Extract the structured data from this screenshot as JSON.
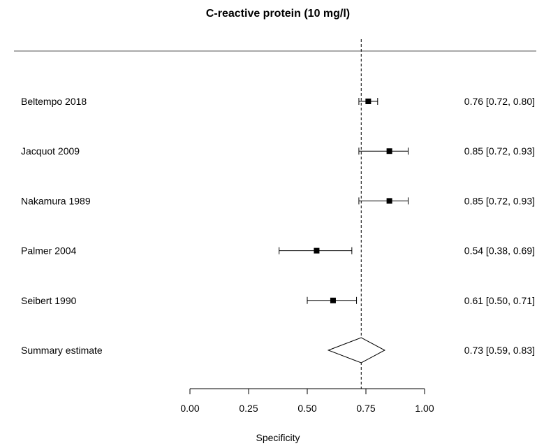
{
  "chart_data": {
    "type": "forest",
    "title": "C-reactive protein (10 mg/l)",
    "xlabel": "Specificity",
    "xlim": [
      0,
      1
    ],
    "xticks": [
      "0.00",
      "0.25",
      "0.50",
      "0.75",
      "1.00"
    ],
    "reference_line": 0.73,
    "studies": [
      {
        "label": "Beltempo 2018",
        "estimate": 0.76,
        "lower": 0.72,
        "upper": 0.8,
        "text": "0.76 [0.72, 0.80]"
      },
      {
        "label": "Jacquot 2009",
        "estimate": 0.85,
        "lower": 0.72,
        "upper": 0.93,
        "text": "0.85 [0.72, 0.93]"
      },
      {
        "label": "Nakamura 1989",
        "estimate": 0.85,
        "lower": 0.72,
        "upper": 0.93,
        "text": "0.85 [0.72, 0.93]"
      },
      {
        "label": "Palmer 2004",
        "estimate": 0.54,
        "lower": 0.38,
        "upper": 0.69,
        "text": "0.54 [0.38, 0.69]"
      },
      {
        "label": "Seibert 1990",
        "estimate": 0.61,
        "lower": 0.5,
        "upper": 0.71,
        "text": "0.61 [0.50, 0.71]"
      }
    ],
    "summary": {
      "label": "Summary estimate",
      "estimate": 0.73,
      "lower": 0.59,
      "upper": 0.83,
      "text": "0.73 [0.59, 0.83]"
    }
  }
}
